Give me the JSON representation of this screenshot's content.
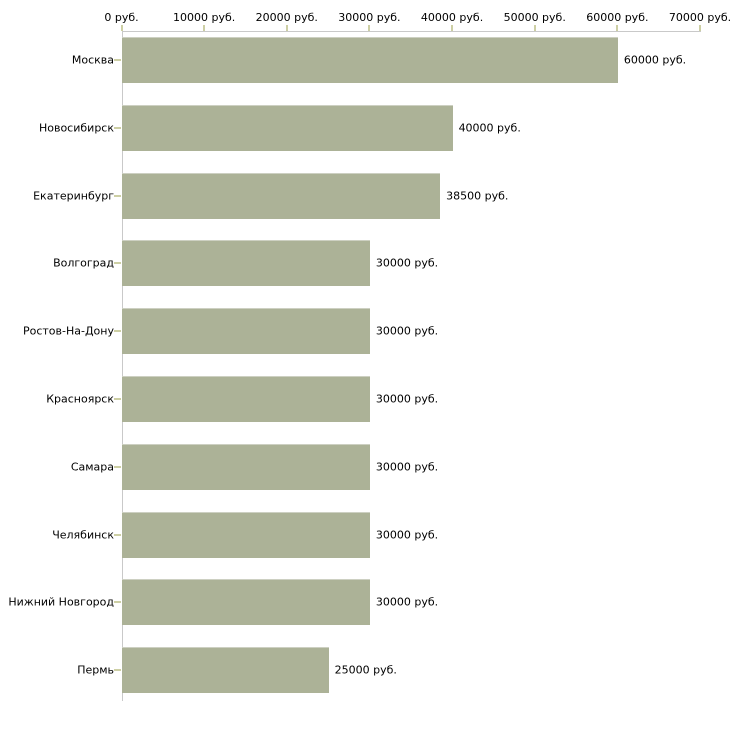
{
  "chart_data": {
    "type": "bar",
    "orientation": "horizontal",
    "title": "",
    "categories": [
      "Москва",
      "Новосибирск",
      "Екатеринбург",
      "Волгоград",
      "Ростов-На-Дону",
      "Красноярск",
      "Самара",
      "Челябинск",
      "Нижний Новгород",
      "Пермь"
    ],
    "values": [
      60000,
      40000,
      38500,
      30000,
      30000,
      30000,
      30000,
      30000,
      30000,
      25000
    ],
    "value_labels": [
      "60000 руб.",
      "40000 руб.",
      "38500 руб.",
      "30000 руб.",
      "30000 руб.",
      "30000 руб.",
      "30000 руб.",
      "30000 руб.",
      "30000 руб.",
      "25000 руб."
    ],
    "x_ticks": [
      {
        "value": 0,
        "label": "0 руб."
      },
      {
        "value": 10000,
        "label": "10000 руб."
      },
      {
        "value": 20000,
        "label": "20000 руб."
      },
      {
        "value": 30000,
        "label": "30000 руб."
      },
      {
        "value": 40000,
        "label": "40000 руб."
      },
      {
        "value": 50000,
        "label": "50000 руб."
      },
      {
        "value": 60000,
        "label": "60000 руб."
      },
      {
        "value": 70000,
        "label": "70000 руб."
      }
    ],
    "xlim": [
      0,
      70000
    ],
    "unit": "руб.",
    "grid": false,
    "legend": false,
    "xaxis_position": "top",
    "colors": {
      "bar": "#acb297",
      "bar_top_edge": "#cdd0c2",
      "tick": "#cdcfa4",
      "axis_line": "#c9c9c9",
      "text": "#000000",
      "background": "#ffffff"
    }
  }
}
